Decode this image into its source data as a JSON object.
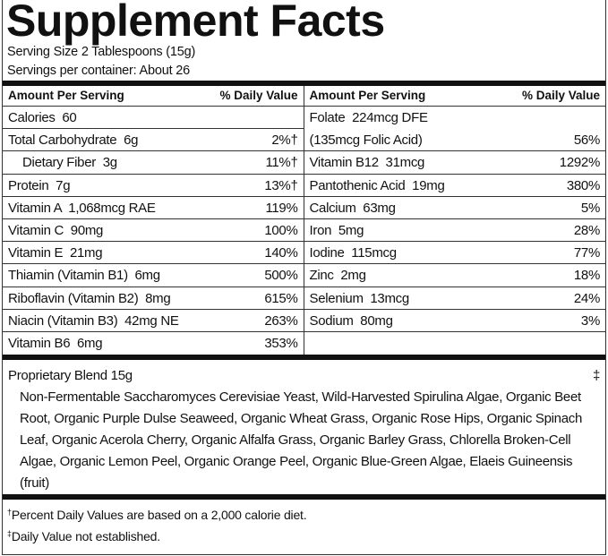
{
  "title": "Supplement Facts",
  "serving_size": "Serving Size 2 Tablespoons (15g)",
  "servings_per_container": "Servings per container: About 26",
  "header": {
    "amount": "Amount Per Serving",
    "dv": "% Daily Value"
  },
  "left_rows": [
    {
      "name": "Calories  60",
      "dv": ""
    },
    {
      "name": "Total Carbohydrate  6g",
      "dv": "2%†"
    },
    {
      "name": "Dietary Fiber  3g",
      "dv": "11%†"
    },
    {
      "name": "Protein  7g",
      "dv": "13%†"
    },
    {
      "name": "Vitamin A  1,068mcg RAE",
      "dv": "119%"
    },
    {
      "name": "Vitamin C  90mg",
      "dv": "100%"
    },
    {
      "name": "Vitamin E  21mg",
      "dv": "140%"
    },
    {
      "name": "Thiamin (Vitamin B1)  6mg",
      "dv": "500%"
    },
    {
      "name": "Riboflavin (Vitamin B2)  8mg",
      "dv": "615%"
    },
    {
      "name": "Niacin (Vitamin B3)  42mg NE",
      "dv": "263%"
    },
    {
      "name": "Vitamin B6  6mg",
      "dv": "353%"
    }
  ],
  "right_rows": [
    {
      "name": "Folate  224mcg DFE",
      "dv": ""
    },
    {
      "name": "(135mcg Folic Acid)",
      "dv": "56%"
    },
    {
      "name": "Vitamin B12  31mcg",
      "dv": "1292%"
    },
    {
      "name": "Pantothenic Acid  19mg",
      "dv": "380%"
    },
    {
      "name": "Calcium  63mg",
      "dv": "5%"
    },
    {
      "name": "Iron  5mg",
      "dv": "28%"
    },
    {
      "name": "Iodine  115mcg",
      "dv": "77%"
    },
    {
      "name": "Zinc  2mg",
      "dv": "18%"
    },
    {
      "name": "Selenium  13mcg",
      "dv": "24%"
    },
    {
      "name": "Sodium  80mg",
      "dv": "3%"
    }
  ],
  "blend": {
    "name": "Proprietary Blend  15g",
    "dv": "‡",
    "ingredients": "Non-Fermentable Saccharomyces Cerevisiae Yeast, Wild-Harvested Spirulina Algae, Organic Beet Root, Organic Purple Dulse Seaweed, Organic Wheat Grass, Organic Rose Hips, Organic Spinach Leaf, Organic Acerola Cherry, Organic Alfalfa Grass, Organic Barley Grass, Chlorella Broken-Cell Algae, Organic Lemon Peel, Organic Orange Peel, Organic Blue-Green Algae, Elaeis Guineensis (fruit)"
  },
  "footnotes": [
    {
      "mark": "†",
      "text": "Percent Daily Values are based on a 2,000 calorie diet."
    },
    {
      "mark": "‡",
      "text": "Daily Value not established."
    }
  ]
}
